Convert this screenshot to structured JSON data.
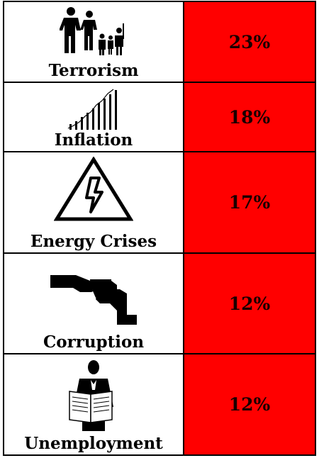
{
  "chart_data": {
    "type": "table",
    "rows": [
      {
        "category": "Terrorism",
        "icon": "soldiers-icon",
        "value": "23%"
      },
      {
        "category": "Inflation",
        "icon": "rising-bars-icon",
        "value": "18%"
      },
      {
        "category": "Energy Crises",
        "icon": "high-voltage-icon",
        "value": "17%"
      },
      {
        "category": "Corruption",
        "icon": "bribe-handshake-icon",
        "value": "12%"
      },
      {
        "category": "Unemployment",
        "icon": "man-reading-newspaper-icon",
        "value": "12%"
      }
    ]
  },
  "colors": {
    "value_fill": "#ff0000",
    "border": "#000000"
  }
}
